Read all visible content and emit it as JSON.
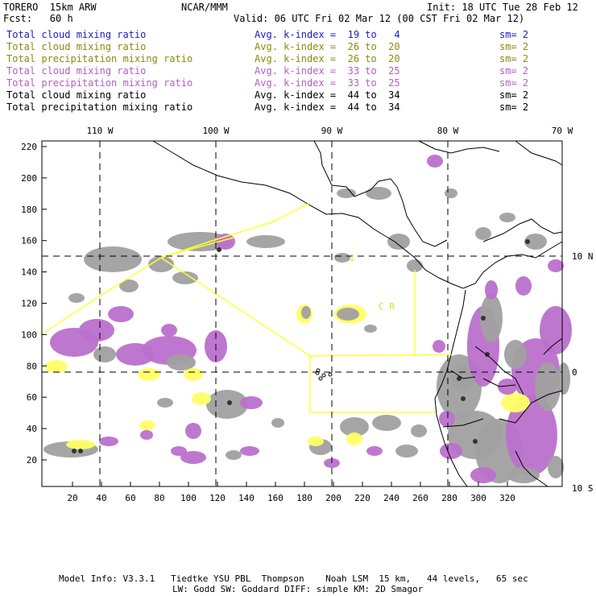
{
  "header": {
    "model": "TORERO  15km ARW",
    "org": "NCAR/MMM",
    "init": "Init: 18 UTC Tue 28 Feb 12",
    "fcst": "Fcst:   60 h",
    "valid": "Valid: 06 UTC Fri 02 Mar 12 (00 CST Fri 02 Mar 12)"
  },
  "legend": [
    {
      "field": "Total cloud mixing ratio",
      "index": "Avg. k-index =  19 to   4",
      "sm": "sm= 2",
      "color": "#1a1acc"
    },
    {
      "field": "Total cloud mixing ratio",
      "index": "Avg. k-index =  26 to  20",
      "sm": "sm= 2",
      "color": "#8a8a10"
    },
    {
      "field": "Total precipitation mixing ratio",
      "index": "Avg. k-index =  26 to  20",
      "sm": "sm= 2",
      "color": "#8a8a10"
    },
    {
      "field": "Total cloud mixing ratio",
      "index": "Avg. k-index =  33 to  25",
      "sm": "sm= 2",
      "color": "#b060c0"
    },
    {
      "field": "Total precipitation mixing ratio",
      "index": "Avg. k-index =  33 to  25",
      "sm": "sm= 2",
      "color": "#b060c0"
    },
    {
      "field": "Total cloud mixing ratio",
      "index": "Avg. k-index =  44 to  34",
      "sm": "sm= 2",
      "color": "#000000"
    },
    {
      "field": "Total precipitation mixing ratio",
      "index": "Avg. k-index =  44 to  34",
      "sm": "sm= 2",
      "color": "#000000"
    }
  ],
  "map": {
    "lon_labels": [
      "110 W",
      "100 W",
      "90 W",
      "80 W",
      "70 W"
    ],
    "lat_labels": [
      "10 N",
      "0",
      "10 S"
    ],
    "x_ticks": [
      "20",
      "40",
      "60",
      "80",
      "100",
      "120",
      "140",
      "160",
      "180",
      "200",
      "220",
      "240",
      "260",
      "280",
      "300",
      "320"
    ],
    "y_ticks": [
      "220",
      "200",
      "180",
      "160",
      "140",
      "120",
      "100",
      "80",
      "60",
      "40",
      "20"
    ],
    "region_labels": [
      "I",
      "C   R"
    ],
    "colors": {
      "gray": "#a0a0a0",
      "purple": "#bb70cc",
      "yellow": "#ffff66",
      "lightblue": "#cceeff",
      "boundary": "#ffff33"
    }
  },
  "footer": {
    "line1": "Model Info: V3.3.1   Tiedtke YSU PBL  Thompson    Noah LSM  15 km,   44 levels,   65 sec",
    "line2": "LW: Godd SW: Goddard DIFF: simple KM: 2D Smagor"
  }
}
